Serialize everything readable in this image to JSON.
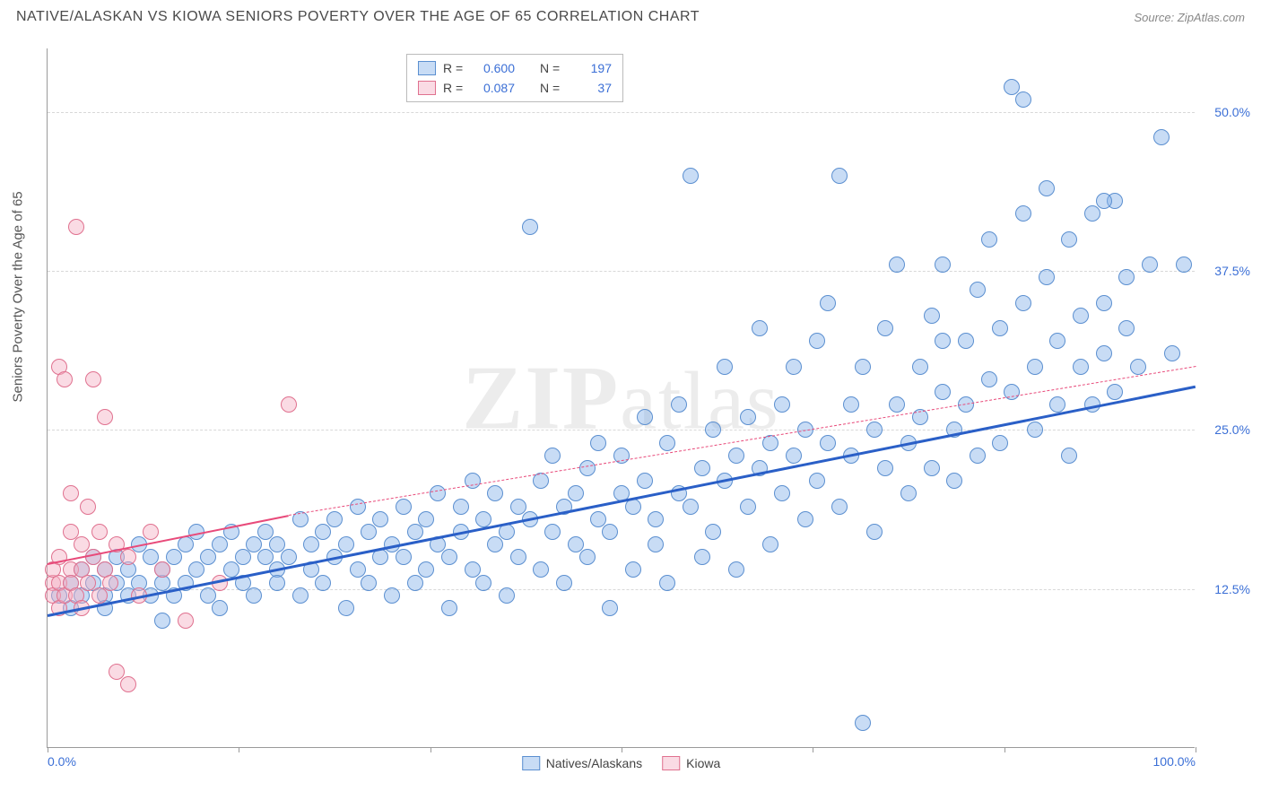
{
  "header": {
    "title": "NATIVE/ALASKAN VS KIOWA SENIORS POVERTY OVER THE AGE OF 65 CORRELATION CHART",
    "source": "Source: ZipAtlas.com"
  },
  "watermark": "ZIPatlas",
  "y_axis": {
    "label": "Seniors Poverty Over the Age of 65"
  },
  "chart": {
    "type": "scatter",
    "xlim": [
      0,
      100
    ],
    "ylim": [
      0,
      55
    ],
    "x_ticks": [
      0,
      16.67,
      33.33,
      50,
      66.67,
      83.33,
      100
    ],
    "x_tick_labels_visible": {
      "0": "0.0%",
      "100": "100.0%"
    },
    "y_ticks": [
      12.5,
      25.0,
      37.5,
      50.0
    ],
    "y_tick_labels": [
      "12.5%",
      "25.0%",
      "37.5%",
      "50.0%"
    ],
    "grid_color": "#d8d8d8",
    "axis_color": "#9a9a9a",
    "background_color": "#ffffff",
    "marker_radius": 8,
    "marker_border_width": 1.2,
    "series": [
      {
        "name": "Natives/Alaskans",
        "fill_color": "rgba(133,178,232,0.45)",
        "border_color": "#5b8fd0",
        "trend": {
          "x1": 0,
          "y1": 10.5,
          "x2": 100,
          "y2": 28.5,
          "color": "#2a5fc7",
          "width": 3,
          "dash": false
        },
        "R": "0.600",
        "N": "197",
        "points": [
          [
            1,
            12
          ],
          [
            2,
            13
          ],
          [
            2,
            11
          ],
          [
            3,
            14
          ],
          [
            3,
            12
          ],
          [
            4,
            13
          ],
          [
            4,
            15
          ],
          [
            5,
            12
          ],
          [
            5,
            11
          ],
          [
            5,
            14
          ],
          [
            6,
            13
          ],
          [
            6,
            15
          ],
          [
            7,
            12
          ],
          [
            7,
            14
          ],
          [
            8,
            13
          ],
          [
            8,
            16
          ],
          [
            9,
            12
          ],
          [
            9,
            15
          ],
          [
            10,
            13
          ],
          [
            10,
            14
          ],
          [
            10,
            10
          ],
          [
            11,
            15
          ],
          [
            11,
            12
          ],
          [
            12,
            16
          ],
          [
            12,
            13
          ],
          [
            13,
            14
          ],
          [
            13,
            17
          ],
          [
            14,
            12
          ],
          [
            14,
            15
          ],
          [
            15,
            16
          ],
          [
            15,
            11
          ],
          [
            16,
            14
          ],
          [
            16,
            17
          ],
          [
            17,
            13
          ],
          [
            17,
            15
          ],
          [
            18,
            16
          ],
          [
            18,
            12
          ],
          [
            19,
            15
          ],
          [
            19,
            17
          ],
          [
            20,
            14
          ],
          [
            20,
            16
          ],
          [
            20,
            13
          ],
          [
            21,
            15
          ],
          [
            22,
            18
          ],
          [
            22,
            12
          ],
          [
            23,
            16
          ],
          [
            23,
            14
          ],
          [
            24,
            17
          ],
          [
            24,
            13
          ],
          [
            25,
            15
          ],
          [
            25,
            18
          ],
          [
            26,
            16
          ],
          [
            26,
            11
          ],
          [
            27,
            14
          ],
          [
            27,
            19
          ],
          [
            28,
            17
          ],
          [
            28,
            13
          ],
          [
            29,
            15
          ],
          [
            29,
            18
          ],
          [
            30,
            16
          ],
          [
            30,
            12
          ],
          [
            31,
            19
          ],
          [
            31,
            15
          ],
          [
            32,
            17
          ],
          [
            32,
            13
          ],
          [
            33,
            18
          ],
          [
            33,
            14
          ],
          [
            34,
            16
          ],
          [
            34,
            20
          ],
          [
            35,
            15
          ],
          [
            35,
            11
          ],
          [
            36,
            19
          ],
          [
            36,
            17
          ],
          [
            37,
            14
          ],
          [
            37,
            21
          ],
          [
            38,
            18
          ],
          [
            38,
            13
          ],
          [
            39,
            16
          ],
          [
            39,
            20
          ],
          [
            40,
            17
          ],
          [
            40,
            12
          ],
          [
            41,
            19
          ],
          [
            41,
            15
          ],
          [
            42,
            41
          ],
          [
            42,
            18
          ],
          [
            43,
            21
          ],
          [
            43,
            14
          ],
          [
            44,
            17
          ],
          [
            44,
            23
          ],
          [
            45,
            19
          ],
          [
            45,
            13
          ],
          [
            46,
            20
          ],
          [
            46,
            16
          ],
          [
            47,
            22
          ],
          [
            47,
            15
          ],
          [
            48,
            18
          ],
          [
            48,
            24
          ],
          [
            49,
            17
          ],
          [
            49,
            11
          ],
          [
            50,
            20
          ],
          [
            50,
            23
          ],
          [
            51,
            19
          ],
          [
            51,
            14
          ],
          [
            52,
            21
          ],
          [
            52,
            26
          ],
          [
            53,
            18
          ],
          [
            53,
            16
          ],
          [
            54,
            24
          ],
          [
            54,
            13
          ],
          [
            55,
            20
          ],
          [
            55,
            27
          ],
          [
            56,
            45
          ],
          [
            56,
            19
          ],
          [
            57,
            22
          ],
          [
            57,
            15
          ],
          [
            58,
            25
          ],
          [
            58,
            17
          ],
          [
            59,
            21
          ],
          [
            59,
            30
          ],
          [
            60,
            23
          ],
          [
            60,
            14
          ],
          [
            61,
            26
          ],
          [
            61,
            19
          ],
          [
            62,
            22
          ],
          [
            62,
            33
          ],
          [
            63,
            24
          ],
          [
            63,
            16
          ],
          [
            64,
            27
          ],
          [
            64,
            20
          ],
          [
            65,
            23
          ],
          [
            65,
            30
          ],
          [
            66,
            25
          ],
          [
            66,
            18
          ],
          [
            67,
            32
          ],
          [
            67,
            21
          ],
          [
            68,
            24
          ],
          [
            68,
            35
          ],
          [
            69,
            45
          ],
          [
            69,
            19
          ],
          [
            70,
            27
          ],
          [
            70,
            23
          ],
          [
            71,
            2
          ],
          [
            71,
            30
          ],
          [
            72,
            25
          ],
          [
            72,
            17
          ],
          [
            73,
            33
          ],
          [
            73,
            22
          ],
          [
            74,
            27
          ],
          [
            74,
            38
          ],
          [
            75,
            24
          ],
          [
            75,
            20
          ],
          [
            76,
            30
          ],
          [
            76,
            26
          ],
          [
            77,
            34
          ],
          [
            77,
            22
          ],
          [
            78,
            28
          ],
          [
            78,
            38
          ],
          [
            79,
            25
          ],
          [
            79,
            21
          ],
          [
            80,
            32
          ],
          [
            80,
            27
          ],
          [
            81,
            36
          ],
          [
            81,
            23
          ],
          [
            82,
            29
          ],
          [
            82,
            40
          ],
          [
            83,
            33
          ],
          [
            83,
            24
          ],
          [
            84,
            52
          ],
          [
            84,
            28
          ],
          [
            85,
            35
          ],
          [
            85,
            42
          ],
          [
            86,
            30
          ],
          [
            86,
            25
          ],
          [
            87,
            37
          ],
          [
            87,
            44
          ],
          [
            88,
            32
          ],
          [
            88,
            27
          ],
          [
            89,
            40
          ],
          [
            89,
            23
          ],
          [
            90,
            34
          ],
          [
            90,
            30
          ],
          [
            91,
            42
          ],
          [
            91,
            27
          ],
          [
            92,
            35
          ],
          [
            92,
            31
          ],
          [
            93,
            43
          ],
          [
            93,
            28
          ],
          [
            94,
            37
          ],
          [
            94,
            33
          ],
          [
            95,
            30
          ],
          [
            96,
            38
          ],
          [
            97,
            48
          ],
          [
            98,
            31
          ],
          [
            99,
            38
          ],
          [
            85,
            51
          ],
          [
            92,
            43
          ],
          [
            78,
            32
          ]
        ]
      },
      {
        "name": "Kiowa",
        "fill_color": "rgba(244,175,195,0.45)",
        "border_color": "#e0718f",
        "trend_solid": {
          "x1": 0,
          "y1": 14.5,
          "x2": 21,
          "y2": 18.3,
          "color": "#e84a7a",
          "width": 2.5,
          "dash": false
        },
        "trend_dash": {
          "x1": 21,
          "y1": 18.3,
          "x2": 100,
          "y2": 30.0,
          "color": "#e84a7a",
          "width": 1.2,
          "dash": true
        },
        "R": "0.087",
        "N": "37",
        "points": [
          [
            0.5,
            13
          ],
          [
            0.5,
            14
          ],
          [
            0.5,
            12
          ],
          [
            1,
            15
          ],
          [
            1,
            11
          ],
          [
            1,
            30
          ],
          [
            1,
            13
          ],
          [
            1.5,
            29
          ],
          [
            1.5,
            12
          ],
          [
            2,
            17
          ],
          [
            2,
            14
          ],
          [
            2,
            20
          ],
          [
            2,
            13
          ],
          [
            2.5,
            41
          ],
          [
            2.5,
            12
          ],
          [
            3,
            16
          ],
          [
            3,
            14
          ],
          [
            3,
            11
          ],
          [
            3.5,
            19
          ],
          [
            3.5,
            13
          ],
          [
            4,
            15
          ],
          [
            4,
            29
          ],
          [
            4.5,
            12
          ],
          [
            4.5,
            17
          ],
          [
            5,
            26
          ],
          [
            5,
            14
          ],
          [
            5.5,
            13
          ],
          [
            6,
            6
          ],
          [
            6,
            16
          ],
          [
            7,
            5
          ],
          [
            7,
            15
          ],
          [
            8,
            12
          ],
          [
            9,
            17
          ],
          [
            10,
            14
          ],
          [
            12,
            10
          ],
          [
            15,
            13
          ],
          [
            21,
            27
          ]
        ]
      }
    ]
  },
  "legend_top": {
    "rows": [
      {
        "swatch_fill": "rgba(133,178,232,0.45)",
        "swatch_border": "#5b8fd0",
        "R": "0.600",
        "N": "197"
      },
      {
        "swatch_fill": "rgba(244,175,195,0.45)",
        "swatch_border": "#e0718f",
        "R": "0.087",
        "N": "37"
      }
    ]
  },
  "legend_bottom": {
    "items": [
      {
        "swatch_fill": "rgba(133,178,232,0.45)",
        "swatch_border": "#5b8fd0",
        "label": "Natives/Alaskans"
      },
      {
        "swatch_fill": "rgba(244,175,195,0.45)",
        "swatch_border": "#e0718f",
        "label": "Kiowa"
      }
    ]
  }
}
